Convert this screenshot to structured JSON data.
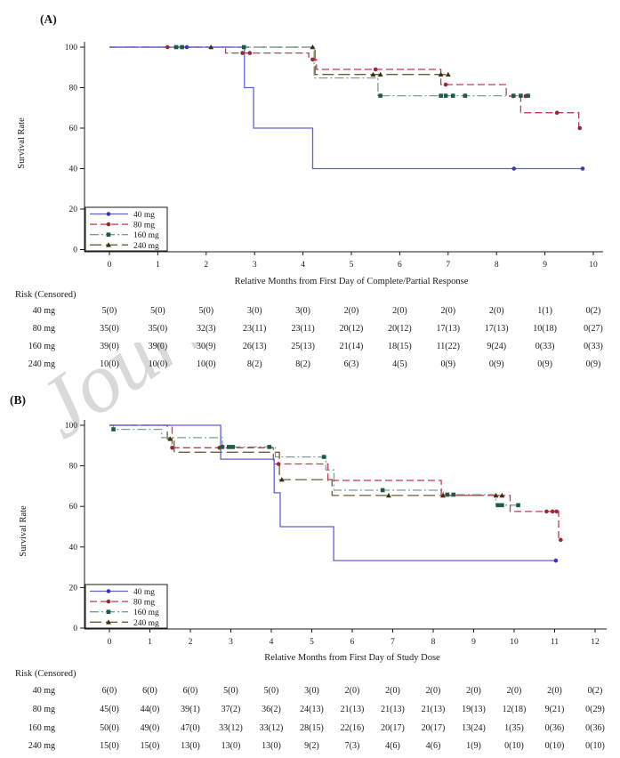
{
  "watermark": "Journal Pre-proof",
  "chart_data": [
    {
      "type": "line",
      "subtype": "kaplan-meier-step",
      "panel_label": "(A)",
      "ylabel": "Survival Rate",
      "xlabel": "Relative Months from First Day of Complete/Partial Response",
      "xlim": [
        0,
        10
      ],
      "ylim": [
        0,
        100
      ],
      "xticks": [
        0,
        1,
        2,
        3,
        4,
        5,
        6,
        7,
        8,
        9,
        10
      ],
      "yticks": [
        0,
        20,
        40,
        60,
        80,
        100
      ],
      "legend_position": "bottom-left",
      "grid": false,
      "series": [
        {
          "name": "40 mg",
          "line_color": "#6262d1",
          "marker_color": "#3838bd",
          "marker": "circle",
          "dash": "solid",
          "steps": [
            [
              0,
              100
            ],
            [
              2.79,
              100
            ],
            [
              2.79,
              80
            ],
            [
              2.98,
              80
            ],
            [
              2.98,
              60
            ],
            [
              4.2,
              60
            ],
            [
              4.2,
              40
            ],
            [
              9.78,
              40
            ]
          ],
          "marks": [
            [
              1.6,
              100
            ],
            [
              8.36,
              40
            ],
            [
              9.78,
              40
            ]
          ]
        },
        {
          "name": "80 mg",
          "line_color": "#c23a53",
          "marker_color": "#992737",
          "marker": "circle",
          "dash": "dash",
          "steps": [
            [
              0,
              100
            ],
            [
              2.4,
              100
            ],
            [
              2.4,
              97.1
            ],
            [
              4.12,
              97.1
            ],
            [
              4.12,
              93.9
            ],
            [
              4.28,
              93.9
            ],
            [
              4.28,
              89
            ],
            [
              6.85,
              89
            ],
            [
              6.85,
              81.5
            ],
            [
              8.2,
              81.5
            ],
            [
              8.2,
              75.8
            ],
            [
              8.5,
              75.8
            ],
            [
              8.5,
              67.6
            ],
            [
              9.7,
              67.6
            ],
            [
              9.7,
              60
            ],
            [
              9.8,
              60
            ]
          ],
          "marks": [
            [
              1.2,
              100
            ],
            [
              2.75,
              97.1
            ],
            [
              2.9,
              97.1
            ],
            [
              4.2,
              93.9
            ],
            [
              5.5,
              89
            ],
            [
              6.95,
              81.5
            ],
            [
              8.35,
              75.8
            ],
            [
              8.6,
              75.8
            ],
            [
              9.25,
              67.6
            ],
            [
              9.72,
              60
            ]
          ]
        },
        {
          "name": "160 mg",
          "line_color": "#79a294",
          "marker_color": "#1e5b44",
          "marker": "square",
          "dash": "dashdot",
          "steps": [
            [
              0,
              100
            ],
            [
              4.23,
              100
            ],
            [
              4.23,
              84.8
            ],
            [
              5.55,
              84.8
            ],
            [
              5.55,
              76
            ],
            [
              8.7,
              76
            ]
          ],
          "marks": [
            [
              1.38,
              100
            ],
            [
              1.5,
              100
            ],
            [
              2.78,
              100
            ],
            [
              5.6,
              76
            ],
            [
              6.85,
              76
            ],
            [
              6.95,
              76
            ],
            [
              7.1,
              76
            ],
            [
              7.35,
              76
            ],
            [
              8.35,
              76
            ],
            [
              8.5,
              76
            ],
            [
              8.65,
              76
            ]
          ]
        },
        {
          "name": "240 mg",
          "line_color": "#6e5d33",
          "marker_color": "#3a2f10",
          "marker": "triangle",
          "dash": "longdash",
          "steps": [
            [
              0,
              100
            ],
            [
              4.25,
              100
            ],
            [
              4.25,
              86.5
            ],
            [
              7.0,
              86.5
            ]
          ],
          "marks": [
            [
              2.1,
              100
            ],
            [
              4.2,
              100
            ],
            [
              5.45,
              86.5
            ],
            [
              5.6,
              86.5
            ],
            [
              6.85,
              86.5
            ],
            [
              7.0,
              86.5
            ]
          ]
        }
      ],
      "risk_table": {
        "title": "Risk (Censored)",
        "rows": [
          {
            "label": "40 mg",
            "values": [
              "5(0)",
              "5(0)",
              "5(0)",
              "3(0)",
              "3(0)",
              "2(0)",
              "2(0)",
              "2(0)",
              "2(0)",
              "1(1)",
              "0(2)"
            ]
          },
          {
            "label": "80 mg",
            "values": [
              "35(0)",
              "35(0)",
              "32(3)",
              "23(11)",
              "23(11)",
              "20(12)",
              "20(12)",
              "17(13)",
              "17(13)",
              "10(18)",
              "0(27)"
            ]
          },
          {
            "label": "160 mg",
            "values": [
              "39(0)",
              "39(0)",
              "30(9)",
              "26(13)",
              "25(13)",
              "21(14)",
              "18(15)",
              "11(22)",
              "9(24)",
              "0(33)",
              "0(33)"
            ]
          },
          {
            "label": "240 mg",
            "values": [
              "10(0)",
              "10(0)",
              "10(0)",
              "8(2)",
              "8(2)",
              "6(3)",
              "4(5)",
              "0(9)",
              "0(9)",
              "0(9)",
              "0(9)"
            ]
          }
        ]
      }
    },
    {
      "type": "line",
      "subtype": "kaplan-meier-step",
      "panel_label": "(B)",
      "ylabel": "Survival Rate",
      "xlabel": "Relative Months from First Day of Study Dose",
      "xlim": [
        0,
        12
      ],
      "ylim": [
        0,
        100
      ],
      "xticks": [
        0,
        1,
        2,
        3,
        4,
        5,
        6,
        7,
        8,
        9,
        10,
        11,
        12
      ],
      "yticks": [
        0,
        20,
        40,
        60,
        80,
        100
      ],
      "legend_position": "bottom-left",
      "grid": false,
      "series": [
        {
          "name": "40 mg",
          "line_color": "#6262d1",
          "marker_color": "#3838bd",
          "marker": "circle",
          "dash": "solid",
          "steps": [
            [
              0,
              100
            ],
            [
              2.75,
              100
            ],
            [
              2.75,
              83.3
            ],
            [
              4.07,
              83.3
            ],
            [
              4.07,
              66.7
            ],
            [
              4.22,
              66.7
            ],
            [
              4.22,
              50
            ],
            [
              5.54,
              50
            ],
            [
              5.54,
              33.3
            ],
            [
              11.03,
              33.3
            ]
          ],
          "marks": [
            [
              11.03,
              33.3
            ]
          ]
        },
        {
          "name": "80 mg",
          "line_color": "#c23a53",
          "marker_color": "#992737",
          "marker": "circle",
          "dash": "dash",
          "steps": [
            [
              0,
              100
            ],
            [
              1.55,
              100
            ],
            [
              1.55,
              88.9
            ],
            [
              4.05,
              88.9
            ],
            [
              4.05,
              80.9
            ],
            [
              5.4,
              80.9
            ],
            [
              5.4,
              72.8
            ],
            [
              8.2,
              72.8
            ],
            [
              8.2,
              65.4
            ],
            [
              9.9,
              65.4
            ],
            [
              9.9,
              57.5
            ],
            [
              11.1,
              57.5
            ],
            [
              11.1,
              43.5
            ],
            [
              11.2,
              43.5
            ]
          ],
          "marks": [
            [
              1.55,
              88.9
            ],
            [
              2.72,
              88.9
            ],
            [
              4.18,
              80.9
            ],
            [
              10.8,
              57.5
            ],
            [
              10.95,
              57.5
            ],
            [
              11.05,
              57.5
            ],
            [
              11.15,
              43.5
            ]
          ]
        },
        {
          "name": "160 mg",
          "line_color": "#79a294",
          "marker_color": "#1e5b44",
          "marker": "square",
          "dash": "dashdot",
          "steps": [
            [
              0,
              100
            ],
            [
              0.1,
              100
            ],
            [
              0.1,
              98
            ],
            [
              1.29,
              98
            ],
            [
              1.29,
              93.9
            ],
            [
              2.79,
              93.9
            ],
            [
              2.79,
              89.3
            ],
            [
              4.1,
              89.3
            ],
            [
              4.1,
              84.4
            ],
            [
              5.35,
              84.4
            ],
            [
              5.35,
              78
            ],
            [
              5.55,
              78
            ],
            [
              5.55,
              68
            ],
            [
              8.25,
              68
            ],
            [
              8.25,
              65.8
            ],
            [
              9.55,
              65.8
            ],
            [
              9.55,
              60.6
            ],
            [
              10.1,
              60.6
            ]
          ],
          "marks": [
            [
              0.1,
              98
            ],
            [
              2.79,
              89.3
            ],
            [
              2.95,
              89.3
            ],
            [
              3.05,
              89.3
            ],
            [
              3.95,
              89.3
            ],
            [
              5.3,
              84.4
            ],
            [
              6.75,
              68
            ],
            [
              8.35,
              65.8
            ],
            [
              8.5,
              65.8
            ],
            [
              9.6,
              60.6
            ],
            [
              9.7,
              60.6
            ],
            [
              10.1,
              60.6
            ]
          ]
        },
        {
          "name": "240 mg",
          "line_color": "#6e5d33",
          "marker_color": "#3a2f10",
          "marker": "triangle",
          "dash": "longdash",
          "steps": [
            [
              0,
              100
            ],
            [
              1.43,
              100
            ],
            [
              1.43,
              93.3
            ],
            [
              1.6,
              93.3
            ],
            [
              1.6,
              86.7
            ],
            [
              4.2,
              86.7
            ],
            [
              4.2,
              73.2
            ],
            [
              5.5,
              73.2
            ],
            [
              5.5,
              65.4
            ],
            [
              9.7,
              65.4
            ]
          ],
          "marks": [
            [
              1.5,
              93.3
            ],
            [
              4.26,
              73.2
            ],
            [
              6.9,
              65.4
            ],
            [
              8.24,
              65.4
            ],
            [
              9.55,
              65.4
            ],
            [
              9.7,
              65.4
            ]
          ]
        }
      ],
      "risk_table": {
        "title": "Risk (Censored)",
        "rows": [
          {
            "label": "40 mg",
            "values": [
              "6(0)",
              "6(0)",
              "6(0)",
              "5(0)",
              "5(0)",
              "3(0)",
              "2(0)",
              "2(0)",
              "2(0)",
              "2(0)",
              "2(0)",
              "2(0)",
              "0(2)"
            ]
          },
          {
            "label": "80 mg",
            "values": [
              "45(0)",
              "44(0)",
              "39(1)",
              "37(2)",
              "36(2)",
              "24(13)",
              "21(13)",
              "21(13)",
              "21(13)",
              "19(13)",
              "12(18)",
              "9(21)",
              "0(29)"
            ]
          },
          {
            "label": "160 mg",
            "values": [
              "50(0)",
              "49(0)",
              "47(0)",
              "33(12)",
              "33(12)",
              "28(15)",
              "22(16)",
              "20(17)",
              "20(17)",
              "13(24)",
              "1(35)",
              "0(36)",
              "0(36)"
            ]
          },
          {
            "label": "240 mg",
            "values": [
              "15(0)",
              "15(0)",
              "13(0)",
              "13(0)",
              "13(0)",
              "9(2)",
              "7(3)",
              "4(6)",
              "4(6)",
              "1(9)",
              "0(10)",
              "0(10)",
              "0(10)"
            ]
          }
        ]
      }
    }
  ]
}
